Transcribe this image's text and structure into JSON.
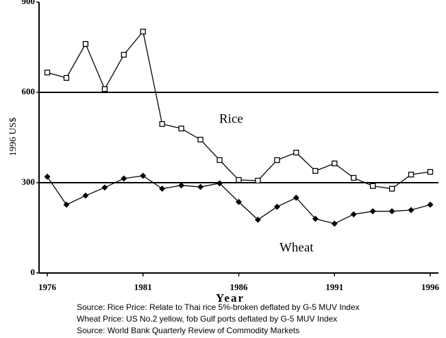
{
  "chart_data": {
    "type": "line",
    "y_label": "1996 US$",
    "x_label": "Year",
    "annotations": [
      "Rice",
      "Wheat"
    ],
    "sources": [
      "Source: Rice Price: Relate to Thai rice 5%-broken deflated by G-5 MUV Index",
      "Wheat Price:  US No.2 yellow, fob Gulf ports deflated by G-5 MUV Index",
      "Source: World Bank Quarterly Review of Commodity Markets"
    ],
    "x": [
      1976,
      1977,
      1978,
      1979,
      1980,
      1981,
      1982,
      1983,
      1984,
      1985,
      1986,
      1987,
      1988,
      1989,
      1990,
      1991,
      1992,
      1993,
      1994,
      1995,
      1996
    ],
    "series": [
      {
        "name": "Rice",
        "color": "#000000",
        "marker": "square",
        "values": [
          666,
          648,
          761,
          611,
          725,
          802,
          495,
          480,
          443,
          375,
          309,
          307,
          375,
          400,
          339,
          364,
          316,
          289,
          280,
          327,
          336
        ]
      },
      {
        "name": "Wheat",
        "color": "#000000",
        "marker": "diamond",
        "values": [
          320,
          227,
          257,
          284,
          314,
          323,
          280,
          291,
          286,
          298,
          236,
          177,
          220,
          250,
          180,
          164,
          195,
          205,
          205,
          209,
          227
        ]
      }
    ],
    "xlim": [
      1976,
      1996
    ],
    "xticks": [
      1976,
      1981,
      1986,
      1991,
      1996
    ],
    "ylim": [
      0,
      900
    ],
    "yticks": [
      0,
      300,
      600,
      900
    ],
    "grid": true
  }
}
